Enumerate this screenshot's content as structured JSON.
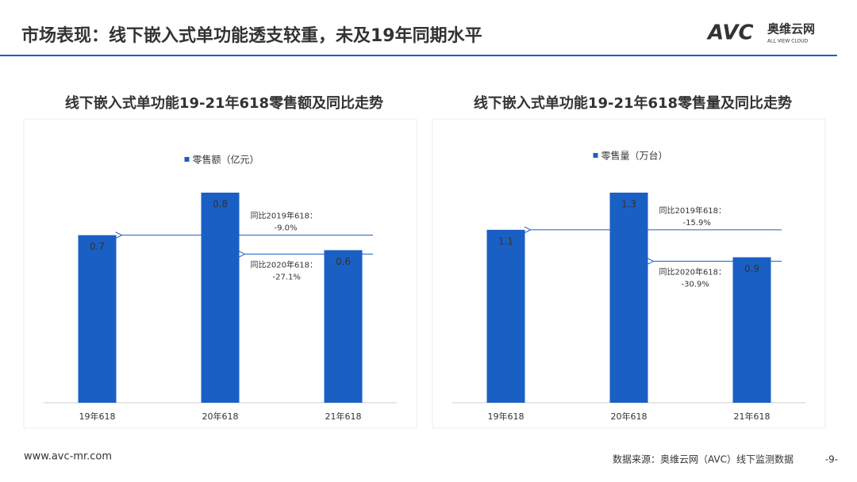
{
  "header": {
    "title": "市场表现：线下嵌入式单功能透支较重，未及19年同期水平",
    "logo": "AVC",
    "logo_cn": "奥维云网",
    "logo_en": "ALL VIEW CLOUD"
  },
  "chart_data": [
    {
      "type": "bar",
      "title": "线下嵌入式单功能19-21年618零售额及同比走势",
      "categories": [
        "19年618",
        "20年618",
        "21年618"
      ],
      "series": [
        {
          "name": "零售额（亿元）",
          "color": "#1a5fc4",
          "values": [
            0.67,
            0.84,
            0.61
          ],
          "value_labels": [
            "0.7",
            "0.8",
            "0.6"
          ]
        }
      ],
      "annotations": [
        {
          "label": "同比2019年618：",
          "change": "-9.0%"
        },
        {
          "label": "同比2020年618：",
          "change": "-27.1%"
        }
      ]
    },
    {
      "type": "bar",
      "title": "线下嵌入式单功能19-21年618零售量及同比走势",
      "categories": [
        "19年618",
        "20年618",
        "21年618"
      ],
      "series": [
        {
          "name": "零售量（万台）",
          "color": "#1a5fc4",
          "values": [
            1.07,
            1.3,
            0.9
          ],
          "value_labels": [
            "1.1",
            "1.3",
            "0.9"
          ]
        }
      ],
      "annotations": [
        {
          "label": "同比2019年618：",
          "change": "-15.9%"
        },
        {
          "label": "同比2020年618：",
          "change": "-30.9%"
        }
      ]
    }
  ],
  "footer": {
    "url": "www.avc-mr.com",
    "source": "数据来源：奥维云网（AVC）线下监测数据",
    "page": "-9-"
  }
}
